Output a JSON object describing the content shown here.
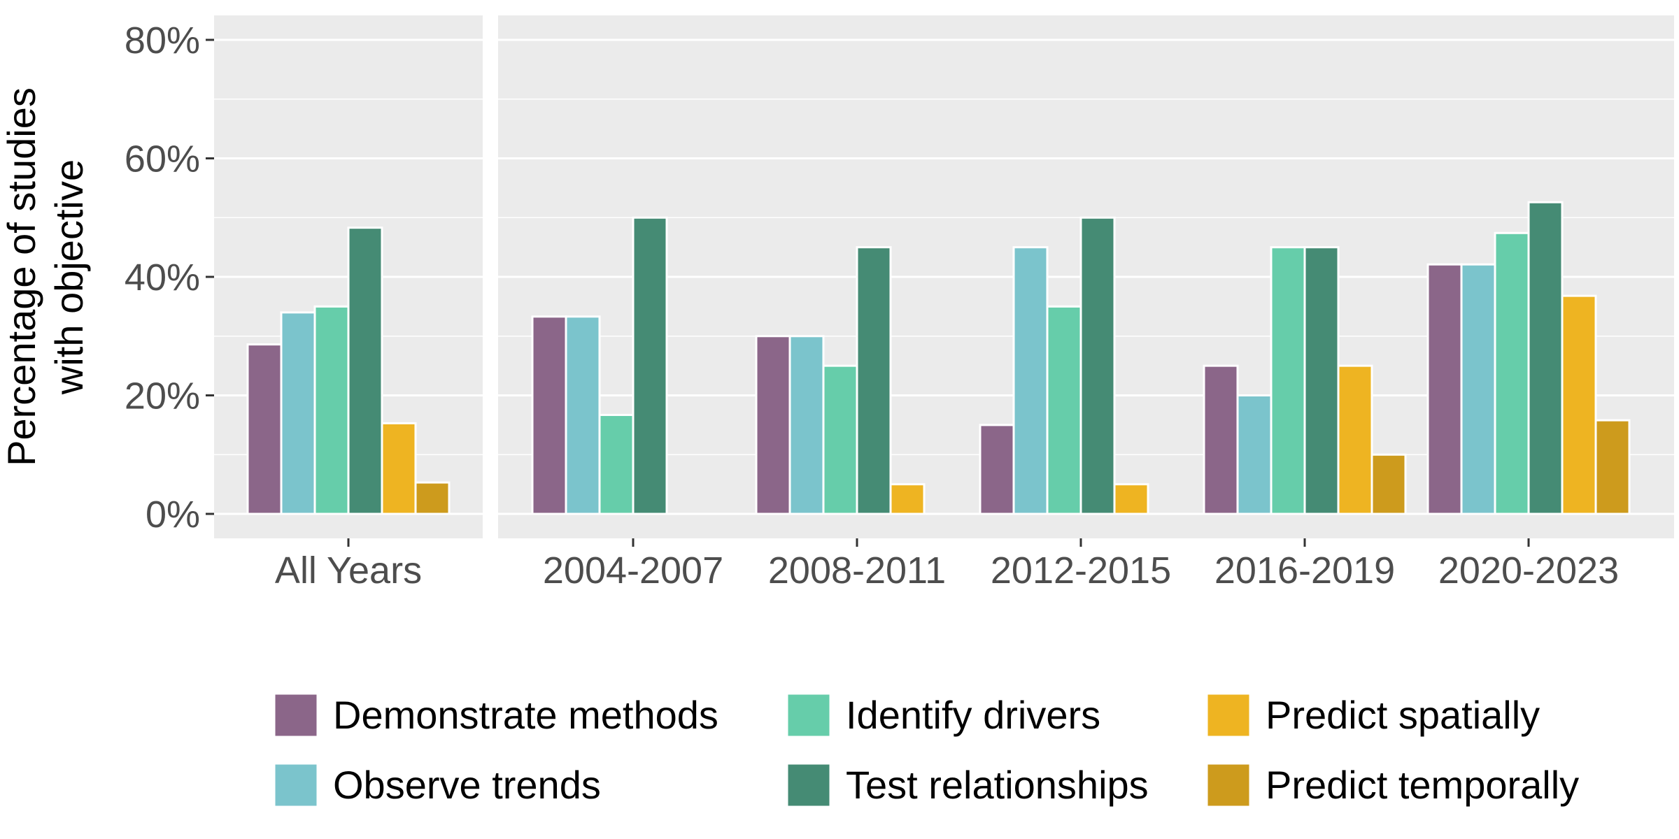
{
  "chart_data": {
    "type": "bar",
    "title": "",
    "ylabel_lines": [
      "Percentage of studies",
      "with objective"
    ],
    "xlabel": "",
    "ylim": [
      0,
      0.8
    ],
    "yticks": [
      0,
      0.2,
      0.4,
      0.6,
      0.8
    ],
    "ytick_labels": [
      "0%",
      "20%",
      "40%",
      "60%",
      "80%"
    ],
    "grid": true,
    "legend_position": "bottom",
    "series": [
      {
        "name": "Demonstrate methods",
        "color": "#8B6689"
      },
      {
        "name": "Observe trends",
        "color": "#7BC4CC"
      },
      {
        "name": "Identify drivers",
        "color": "#66CDAA"
      },
      {
        "name": "Test relationships",
        "color": "#458B74"
      },
      {
        "name": "Predict spatially",
        "color": "#EEB422"
      },
      {
        "name": "Predict temporally",
        "color": "#CD9B1D"
      }
    ],
    "panels": [
      {
        "categories": [
          "All Years"
        ],
        "values": [
          [
            0.286,
            0.34,
            0.35,
            0.483,
            0.153,
            0.053
          ]
        ]
      },
      {
        "categories": [
          "2004-2007",
          "2008-2011",
          "2012-2015",
          "2016-2019",
          "2020-2023"
        ],
        "values": [
          [
            0.333,
            0.333,
            0.167,
            0.5,
            0,
            0
          ],
          [
            0.3,
            0.3,
            0.25,
            0.45,
            0.05,
            0
          ],
          [
            0.15,
            0.45,
            0.35,
            0.5,
            0.05,
            0
          ],
          [
            0.25,
            0.2,
            0.45,
            0.45,
            0.25,
            0.1
          ],
          [
            0.421,
            0.421,
            0.474,
            0.526,
            0.368,
            0.158
          ]
        ]
      }
    ]
  },
  "colors": {
    "panel_background": "#EBEBEB",
    "gridline": "#FFFFFF",
    "tick_text": "#4D4D4D",
    "bar_outline": "#FFFFFF"
  }
}
